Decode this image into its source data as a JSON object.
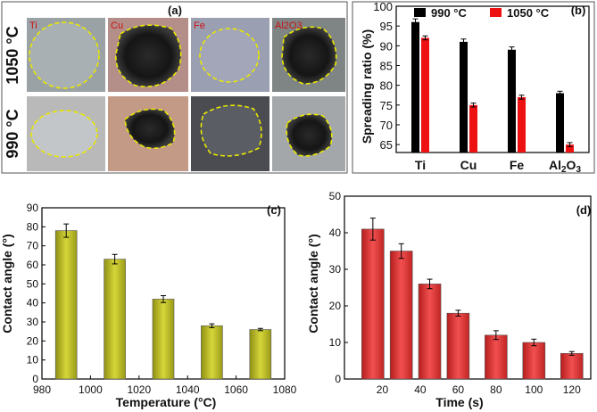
{
  "colors": {
    "black_series": "#000000",
    "red_series": "#ee1111",
    "olive_bar": "#b9b925",
    "red_bar": "#e23a3a",
    "photo_dashed_outline": "#e8e800"
  },
  "panel_a": {
    "label": "(a)",
    "rows": [
      "1050 °C",
      "990 °C"
    ],
    "columns": [
      "Ti",
      "Cu",
      "Fe",
      "Al2O3"
    ]
  },
  "chart_data": [
    {
      "panel": "(b)",
      "type": "bar",
      "categories": [
        "Ti",
        "Cu",
        "Fe",
        "Al2O3"
      ],
      "series": [
        {
          "name": "990 °C",
          "values": [
            96,
            91,
            89,
            78
          ],
          "errors": [
            0.8,
            0.7,
            0.7,
            0.5
          ],
          "color": "#000000"
        },
        {
          "name": "1050 °C",
          "values": [
            92,
            75,
            77,
            65
          ],
          "errors": [
            0.5,
            0.5,
            0.5,
            0.5
          ],
          "color": "#ee1111"
        }
      ],
      "xlabel": "",
      "ylabel": "Spreading ratio (%)",
      "ylim": [
        63,
        100
      ],
      "yticks": [
        65,
        70,
        75,
        80,
        85,
        90,
        95,
        100
      ],
      "legend": "top"
    },
    {
      "panel": "(c)",
      "type": "bar",
      "x": [
        990,
        1010,
        1030,
        1050,
        1070
      ],
      "values": [
        78,
        63,
        42,
        28,
        26
      ],
      "errors": [
        3.5,
        2.5,
        1.8,
        1.0,
        0.6
      ],
      "xlabel": "Temperature (°C)",
      "ylabel": "Contact angle (°)",
      "xlim": [
        980,
        1080
      ],
      "ylim": [
        0,
        90
      ],
      "xticks": [
        980,
        1000,
        1020,
        1040,
        1060,
        1080
      ],
      "yticks": [
        0,
        10,
        20,
        30,
        40,
        50,
        60,
        70,
        80,
        90
      ],
      "color": "#b9b925"
    },
    {
      "panel": "(d)",
      "type": "bar",
      "x": [
        15,
        30,
        45,
        60,
        80,
        100,
        120
      ],
      "values": [
        41,
        35,
        26,
        18,
        12,
        10,
        7
      ],
      "errors": [
        3,
        2,
        1.3,
        0.8,
        1.2,
        0.9,
        0.5
      ],
      "xlabel": "Time (s)",
      "ylabel": "Contact angle (°)",
      "xlim": [
        0,
        130
      ],
      "ylim": [
        0,
        50
      ],
      "xticks": [
        20,
        40,
        60,
        80,
        100,
        120
      ],
      "yticks": [
        0,
        10,
        20,
        30,
        40,
        50
      ],
      "color": "#e23a3a"
    }
  ]
}
